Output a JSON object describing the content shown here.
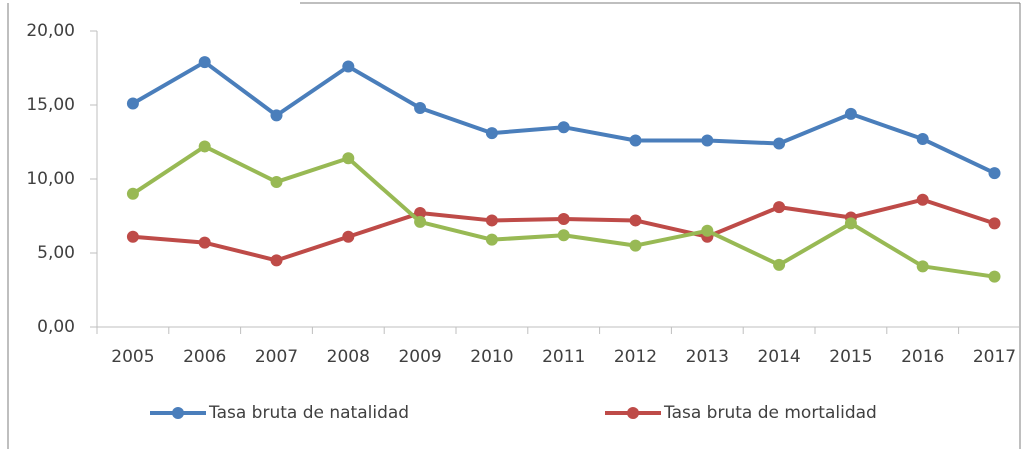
{
  "chart_data": {
    "type": "line",
    "categories": [
      "2005",
      "2006",
      "2007",
      "2008",
      "2009",
      "2010",
      "2011",
      "2012",
      "2013",
      "2014",
      "2015",
      "2016",
      "2017"
    ],
    "series": [
      {
        "name": "Tasa bruta de natalidad",
        "color": "#4a7ebb",
        "values": [
          15.1,
          17.9,
          14.3,
          17.6,
          14.8,
          13.1,
          13.5,
          12.6,
          12.6,
          12.4,
          14.4,
          12.7,
          10.4
        ]
      },
      {
        "name": "Tasa bruta de mortalidad",
        "color": "#be4b48",
        "values": [
          6.1,
          5.7,
          4.5,
          6.1,
          7.7,
          7.2,
          7.3,
          7.2,
          6.1,
          8.1,
          7.4,
          8.6,
          7.0
        ]
      },
      {
        "color": "#98b954",
        "values": [
          9.0,
          12.2,
          9.8,
          11.4,
          7.1,
          5.9,
          6.2,
          5.5,
          6.5,
          4.2,
          7.0,
          4.1,
          3.4
        ]
      }
    ],
    "ylim": [
      0,
      20
    ],
    "yticks": [
      {
        "value": 0,
        "label": "0,00"
      },
      {
        "value": 5,
        "label": "5,00"
      },
      {
        "value": 10,
        "label": "10,00"
      },
      {
        "value": 15,
        "label": "15,00"
      },
      {
        "value": 20,
        "label": "20,00"
      }
    ]
  }
}
